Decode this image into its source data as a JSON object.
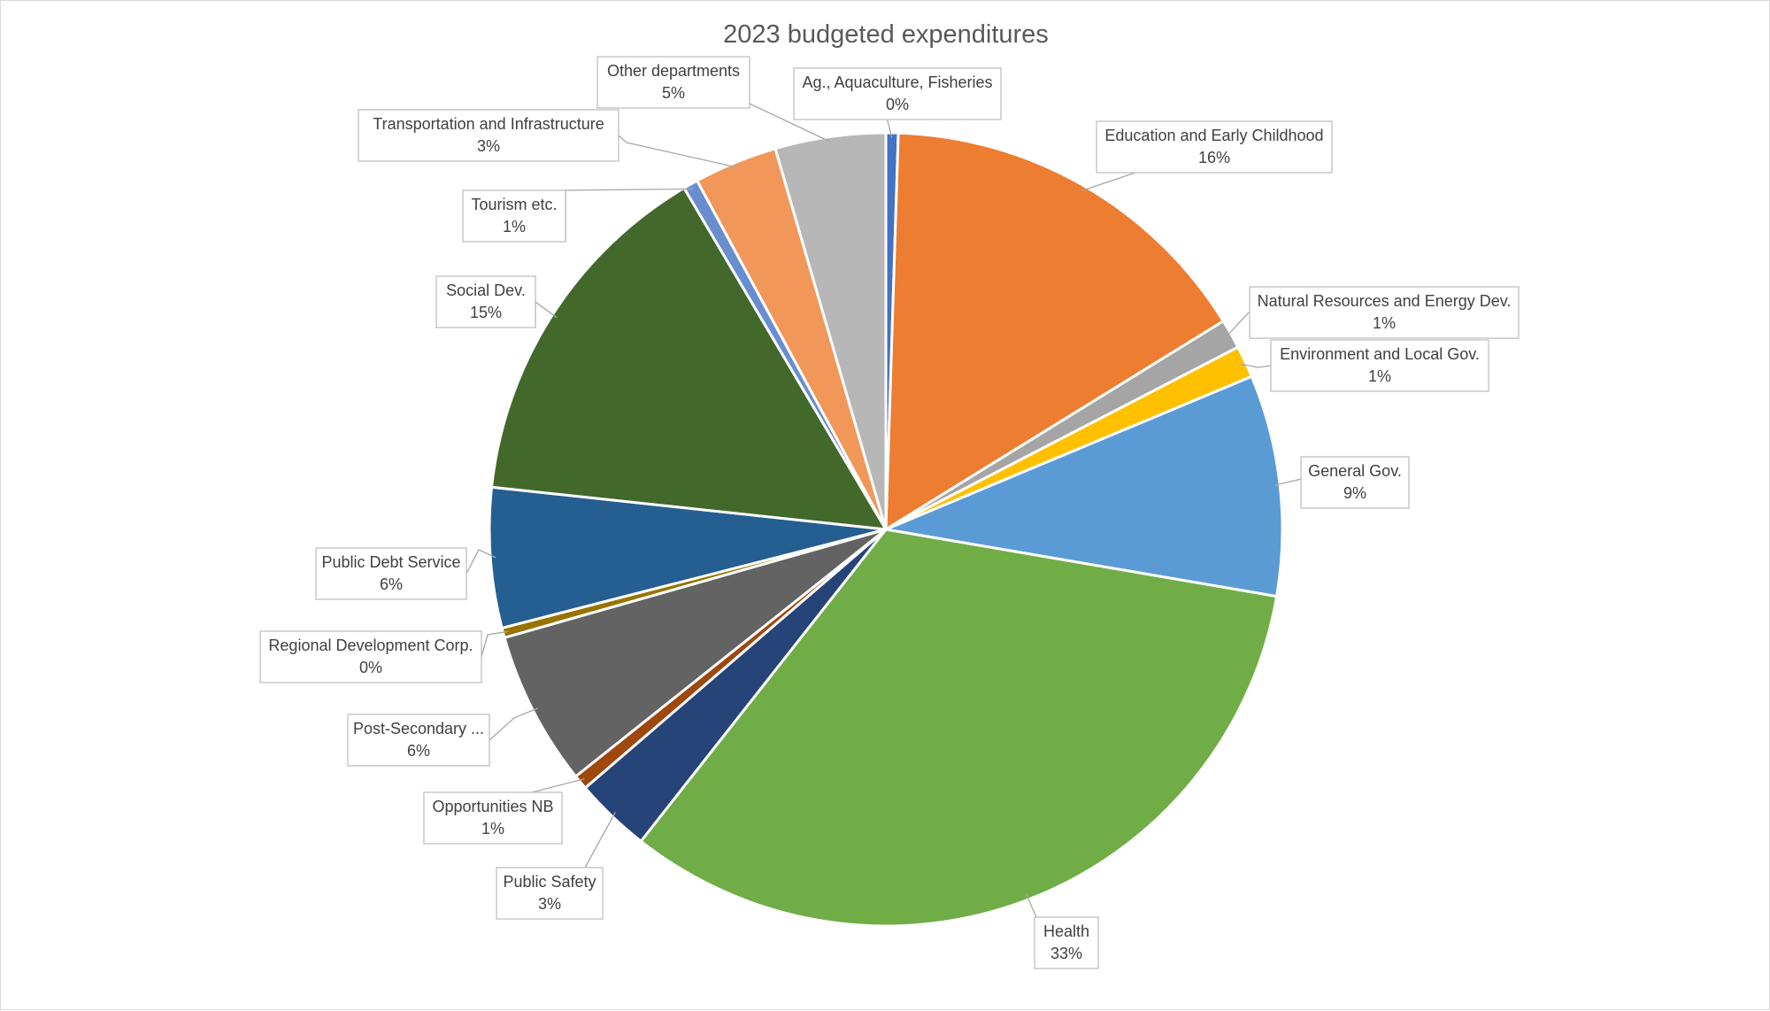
{
  "chart_data": {
    "type": "pie",
    "title": "2023 budgeted expenditures",
    "slices": [
      {
        "label": "Ag., Aquaculture, Fisheries",
        "value": 0.5,
        "value_label": "0%",
        "color": "#4472C4"
      },
      {
        "label": "Education and Early Childhood",
        "value": 15.7,
        "value_label": "16%",
        "color": "#ED7D31"
      },
      {
        "label": "Natural Resources and Energy Dev.",
        "value": 1.2,
        "value_label": "1%",
        "color": "#A5A5A5"
      },
      {
        "label": "Environment and Local Gov.",
        "value": 1.3,
        "value_label": "1%",
        "color": "#FFC000"
      },
      {
        "label": "General Gov.",
        "value": 9.0,
        "value_label": "9%",
        "color": "#5B9BD5"
      },
      {
        "label": "Health",
        "value": 32.9,
        "value_label": "33%",
        "color": "#70AD47"
      },
      {
        "label": "Public Safety",
        "value": 3.1,
        "value_label": "3%",
        "color": "#264478"
      },
      {
        "label": "Opportunities NB",
        "value": 0.6,
        "value_label": "1%",
        "color": "#9E480E"
      },
      {
        "label": "Post-Secondary ...",
        "value": 6.3,
        "value_label": "6%",
        "color": "#636363"
      },
      {
        "label": "Regional Development Corp.",
        "value": 0.4,
        "value_label": "0%",
        "color": "#997300"
      },
      {
        "label": "Public Debt Service",
        "value": 5.7,
        "value_label": "6%",
        "color": "#255E91"
      },
      {
        "label": "Social Dev.",
        "value": 14.8,
        "value_label": "15%",
        "color": "#43682B"
      },
      {
        "label": "Tourism etc.",
        "value": 0.6,
        "value_label": "1%",
        "color": "#698ED0"
      },
      {
        "label": "Transportation and Infrastructure",
        "value": 3.4,
        "value_label": "3%",
        "color": "#F1975A"
      },
      {
        "label": "Other departments",
        "value": 4.5,
        "value_label": "5%",
        "color": "#B7B7B7"
      }
    ],
    "legend": "none",
    "label_style": "callouts"
  }
}
